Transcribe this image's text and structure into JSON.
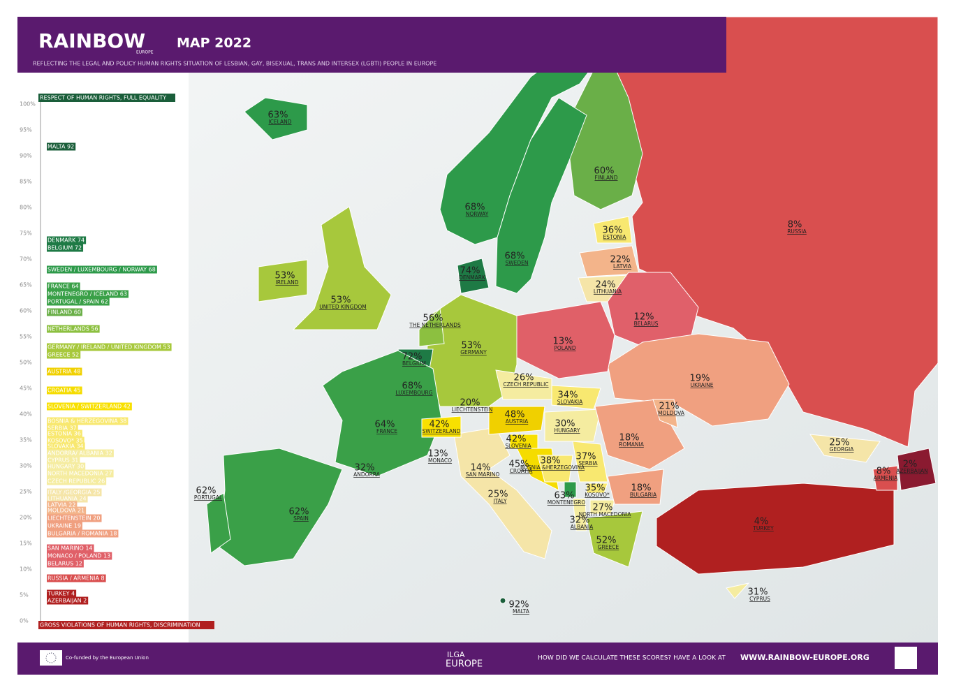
{
  "header": {
    "logo": "RAINBOW",
    "logo_sub": "EUROPE",
    "title": "MAP 2022",
    "subtitle": "REFLECTING THE LEGAL AND POLICY HUMAN RIGHTS SITUATION OF LESBIAN, GAY, BISEXUAL, TRANS AND INTERSEX (LGBTI) PEOPLE IN EUROPE"
  },
  "scale": {
    "top_label": "RESPECT OF HUMAN RIGHTS, FULL EQUALITY",
    "bottom_label": "GROSS VIOLATIONS OF HUMAN RIGHTS, DISCRIMINATION",
    "ticks": [
      "100%",
      "95%",
      "90%",
      "85%",
      "80%",
      "75%",
      "70%",
      "65%",
      "60%",
      "55%",
      "50%",
      "45%",
      "40%",
      "35%",
      "30%",
      "25%",
      "20%",
      "15%",
      "10%",
      "5%",
      "0%"
    ],
    "entries": [
      "MALTA 92",
      "DENMARK 74",
      "BELGIUM 72",
      "SWEDEN / LUXEMBOURG / NORWAY 68",
      "FRANCE 64",
      "MONTENEGRO / ICELAND 63",
      "PORTUGAL / SPAIN 62",
      "FINLAND 60",
      "NETHERLANDS 56",
      "GERMANY / IRELAND / UNITED KINGDOM 53",
      "GREECE 52",
      "AUSTRIA 48",
      "CROATIA 45",
      "SLOVENIA / SWITZERLAND 42",
      "BOSNIA & HERZEGOVINA 38",
      "SERBIA 37",
      "ESTONIA 36",
      "KOSOVO* 35",
      "SLOVAKIA 34",
      "ANDORRA/ ALBANIA 32",
      "CYPRUS 31",
      "HUNGARY 30",
      "NORTH MACEDONIA 27",
      "CZECH REPUBLIC 26",
      "ITALY /GEORGIA 25",
      "LITHUANIA 24",
      "LATVIA 22",
      "MOLDOVA 21",
      "LIECHTENSTEIN 20",
      "UKRAINE 19",
      "BULGARIA / ROMANIA 18",
      "SAN MARINO 14",
      "MONACO / POLAND 13",
      "BELARUS 12",
      "RUSSIA / ARMENIA 8",
      "TURKEY 4",
      "AZERBAIJAN 2"
    ]
  },
  "map": {
    "countries": [
      {
        "score": "63%",
        "name": "ICELAND"
      },
      {
        "score": "68%",
        "name": "NORWAY"
      },
      {
        "score": "68%",
        "name": "SWEDEN"
      },
      {
        "score": "60%",
        "name": "FINLAND"
      },
      {
        "score": "36%",
        "name": "ESTONIA"
      },
      {
        "score": "22%",
        "name": "LATVIA"
      },
      {
        "score": "24%",
        "name": "LITHUANIA"
      },
      {
        "score": "8%",
        "name": "RUSSIA"
      },
      {
        "score": "74%",
        "name": "DENMARK"
      },
      {
        "score": "53%",
        "name": "IRELAND"
      },
      {
        "score": "53%",
        "name": "UNITED KINGDOM"
      },
      {
        "score": "56%",
        "name": "THE NETHERLANDS"
      },
      {
        "score": "12%",
        "name": "BELARUS"
      },
      {
        "score": "13%",
        "name": "POLAND"
      },
      {
        "score": "53%",
        "name": "GERMANY"
      },
      {
        "score": "72%",
        "name": "BELGIUM"
      },
      {
        "score": "68%",
        "name": "LUXEMBOURG"
      },
      {
        "score": "26%",
        "name": "CZECH REPUBLIC"
      },
      {
        "score": "19%",
        "name": "UKRAINE"
      },
      {
        "score": "34%",
        "name": "SLOVAKIA"
      },
      {
        "score": "20%",
        "name": "LIECHTENSTEIN"
      },
      {
        "score": "21%",
        "name": "MOLDOVA"
      },
      {
        "score": "64%",
        "name": "FRANCE"
      },
      {
        "score": "48%",
        "name": "AUSTRIA"
      },
      {
        "score": "42%",
        "name": "SWITZERLAND"
      },
      {
        "score": "30%",
        "name": "HUNGARY"
      },
      {
        "score": "18%",
        "name": "ROMANIA"
      },
      {
        "score": "42%",
        "name": "SLOVENIA"
      },
      {
        "score": "25%",
        "name": "GEORGIA"
      },
      {
        "score": "13%",
        "name": "MONACO"
      },
      {
        "score": "45%",
        "name": "CROATIA"
      },
      {
        "score": "38%",
        "name": "BOSNIA &HERZEGOVINA"
      },
      {
        "score": "37%",
        "name": "SERBIA"
      },
      {
        "score": "14%",
        "name": "SAN MARINO"
      },
      {
        "score": "32%",
        "name": "ANDORRA"
      },
      {
        "score": "8%",
        "name": "ARMENIA"
      },
      {
        "score": "2%",
        "name": "AZERBAIJAN"
      },
      {
        "score": "62%",
        "name": "PORTUGAL"
      },
      {
        "score": "18%",
        "name": "BULGARIA"
      },
      {
        "score": "35%",
        "name": "KOSOVO*"
      },
      {
        "score": "63%",
        "name": "MONTENEGRO"
      },
      {
        "score": "25%",
        "name": "ITALY"
      },
      {
        "score": "27%",
        "name": "NORTH MACEDONIA"
      },
      {
        "score": "62%",
        "name": "SPAIN"
      },
      {
        "score": "32%",
        "name": "ALBANIA"
      },
      {
        "score": "4%",
        "name": "TURKEY"
      },
      {
        "score": "52%",
        "name": "GREECE"
      },
      {
        "score": "31%",
        "name": "CYPRUS"
      },
      {
        "score": "92%",
        "name": "MALTA"
      }
    ]
  },
  "footer": {
    "eu": "Co-funded by the European Union",
    "ilga": "ILGA",
    "ilga_sub": "EUROPE",
    "cta": "HOW DID WE CALCULATE THESE SCORES? HAVE A LOOK AT",
    "url": "WWW.RAINBOW-EUROPE.ORG"
  }
}
